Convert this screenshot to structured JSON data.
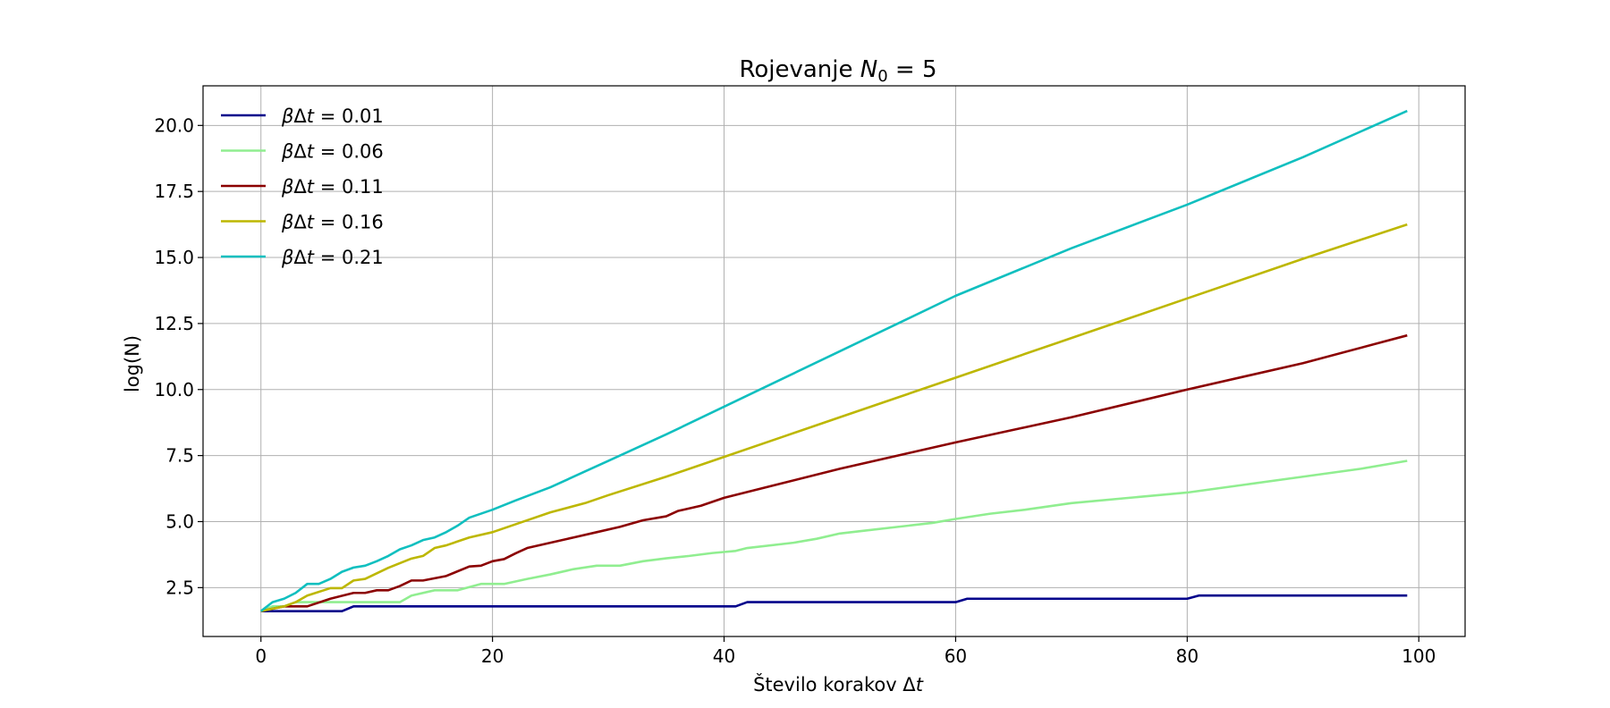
{
  "chart_data": {
    "type": "line",
    "title": {
      "text": "Rojevanje ",
      "math": "N",
      "sub": "0",
      "rest": " = 5"
    },
    "xlabel": {
      "text": "Število korakov Δ",
      "math": "t"
    },
    "ylabel": "log(N)",
    "xlim": [
      -5,
      104
    ],
    "ylim": [
      0.65,
      21.5
    ],
    "xticks": [
      0,
      20,
      40,
      60,
      80,
      100
    ],
    "xtick_labels": [
      "0",
      "20",
      "40",
      "60",
      "80",
      "100"
    ],
    "yticks": [
      2.5,
      5.0,
      7.5,
      10.0,
      12.5,
      15.0,
      17.5,
      20.0
    ],
    "ytick_labels": [
      "2.5",
      "5.0",
      "7.5",
      "10.0",
      "12.5",
      "15.0",
      "17.5",
      "20.0"
    ],
    "grid": true,
    "legend_position": "upper-left",
    "series": [
      {
        "name": "βΔt = 0.01",
        "label_prefix": "βΔ",
        "label_math": "t",
        "label_value": " = 0.01",
        "color": "#00008b",
        "points": [
          [
            0,
            1.61
          ],
          [
            7,
            1.61
          ],
          [
            8,
            1.79
          ],
          [
            41,
            1.79
          ],
          [
            42,
            1.95
          ],
          [
            60,
            1.95
          ],
          [
            61,
            2.08
          ],
          [
            80,
            2.08
          ],
          [
            81,
            2.2
          ],
          [
            99,
            2.2
          ]
        ]
      },
      {
        "name": "βΔt = 0.06",
        "label_prefix": "βΔ",
        "label_math": "t",
        "label_value": " = 0.06",
        "color": "#90ee90",
        "points": [
          [
            0,
            1.61
          ],
          [
            1,
            1.79
          ],
          [
            2,
            1.79
          ],
          [
            3,
            1.95
          ],
          [
            12,
            1.95
          ],
          [
            13,
            2.2
          ],
          [
            15,
            2.4
          ],
          [
            17,
            2.4
          ],
          [
            19,
            2.64
          ],
          [
            21,
            2.64
          ],
          [
            23,
            2.83
          ],
          [
            25,
            3.0
          ],
          [
            27,
            3.2
          ],
          [
            29,
            3.33
          ],
          [
            31,
            3.33
          ],
          [
            33,
            3.5
          ],
          [
            35,
            3.61
          ],
          [
            37,
            3.7
          ],
          [
            39,
            3.81
          ],
          [
            41,
            3.89
          ],
          [
            42,
            4.0
          ],
          [
            46,
            4.2
          ],
          [
            48,
            4.35
          ],
          [
            50,
            4.55
          ],
          [
            52,
            4.65
          ],
          [
            55,
            4.8
          ],
          [
            58,
            4.95
          ],
          [
            60,
            5.1
          ],
          [
            63,
            5.3
          ],
          [
            66,
            5.45
          ],
          [
            70,
            5.7
          ],
          [
            75,
            5.9
          ],
          [
            80,
            6.1
          ],
          [
            85,
            6.4
          ],
          [
            90,
            6.7
          ],
          [
            95,
            7.0
          ],
          [
            99,
            7.3
          ]
        ]
      },
      {
        "name": "βΔt = 0.11",
        "label_prefix": "βΔ",
        "label_math": "t",
        "label_value": " = 0.11",
        "color": "#8b0000",
        "points": [
          [
            0,
            1.61
          ],
          [
            2,
            1.79
          ],
          [
            4,
            1.79
          ],
          [
            6,
            2.08
          ],
          [
            8,
            2.3
          ],
          [
            9,
            2.3
          ],
          [
            10,
            2.4
          ],
          [
            11,
            2.4
          ],
          [
            12,
            2.56
          ],
          [
            13,
            2.77
          ],
          [
            14,
            2.77
          ],
          [
            16,
            2.94
          ],
          [
            18,
            3.3
          ],
          [
            19,
            3.33
          ],
          [
            20,
            3.5
          ],
          [
            21,
            3.58
          ],
          [
            22,
            3.8
          ],
          [
            23,
            4.0
          ],
          [
            25,
            4.2
          ],
          [
            27,
            4.4
          ],
          [
            29,
            4.6
          ],
          [
            31,
            4.8
          ],
          [
            33,
            5.05
          ],
          [
            35,
            5.2
          ],
          [
            36,
            5.4
          ],
          [
            38,
            5.6
          ],
          [
            40,
            5.9
          ],
          [
            45,
            6.45
          ],
          [
            50,
            7.0
          ],
          [
            55,
            7.5
          ],
          [
            60,
            8.0
          ],
          [
            70,
            8.95
          ],
          [
            80,
            10.0
          ],
          [
            90,
            11.0
          ],
          [
            99,
            12.05
          ]
        ]
      },
      {
        "name": "βΔt = 0.16",
        "label_prefix": "βΔ",
        "label_math": "t",
        "label_value": " = 0.16",
        "color": "#bdb700",
        "points": [
          [
            0,
            1.61
          ],
          [
            2,
            1.79
          ],
          [
            3,
            1.95
          ],
          [
            4,
            2.2
          ],
          [
            6,
            2.48
          ],
          [
            7,
            2.48
          ],
          [
            8,
            2.77
          ],
          [
            9,
            2.83
          ],
          [
            11,
            3.25
          ],
          [
            13,
            3.6
          ],
          [
            14,
            3.7
          ],
          [
            15,
            4.0
          ],
          [
            16,
            4.1
          ],
          [
            18,
            4.4
          ],
          [
            20,
            4.6
          ],
          [
            22,
            4.9
          ],
          [
            25,
            5.35
          ],
          [
            28,
            5.7
          ],
          [
            30,
            6.0
          ],
          [
            35,
            6.7
          ],
          [
            40,
            7.45
          ],
          [
            45,
            8.2
          ],
          [
            50,
            8.95
          ],
          [
            55,
            9.7
          ],
          [
            60,
            10.45
          ],
          [
            70,
            11.95
          ],
          [
            80,
            13.45
          ],
          [
            90,
            14.95
          ],
          [
            99,
            16.25
          ]
        ]
      },
      {
        "name": "βΔt = 0.21",
        "label_prefix": "βΔ",
        "label_math": "t",
        "label_value": " = 0.21",
        "color": "#10bfbf",
        "points": [
          [
            0,
            1.61
          ],
          [
            1,
            1.95
          ],
          [
            2,
            2.08
          ],
          [
            3,
            2.3
          ],
          [
            4,
            2.64
          ],
          [
            5,
            2.64
          ],
          [
            6,
            2.83
          ],
          [
            7,
            3.1
          ],
          [
            8,
            3.26
          ],
          [
            9,
            3.33
          ],
          [
            10,
            3.5
          ],
          [
            11,
            3.7
          ],
          [
            12,
            3.95
          ],
          [
            13,
            4.1
          ],
          [
            14,
            4.3
          ],
          [
            15,
            4.4
          ],
          [
            16,
            4.6
          ],
          [
            17,
            4.85
          ],
          [
            18,
            5.15
          ],
          [
            20,
            5.45
          ],
          [
            22,
            5.8
          ],
          [
            25,
            6.3
          ],
          [
            28,
            6.9
          ],
          [
            30,
            7.3
          ],
          [
            35,
            8.3
          ],
          [
            40,
            9.35
          ],
          [
            45,
            10.4
          ],
          [
            50,
            11.45
          ],
          [
            55,
            12.5
          ],
          [
            60,
            13.55
          ],
          [
            70,
            15.35
          ],
          [
            80,
            17.0
          ],
          [
            90,
            18.8
          ],
          [
            99,
            20.55
          ]
        ]
      }
    ]
  }
}
